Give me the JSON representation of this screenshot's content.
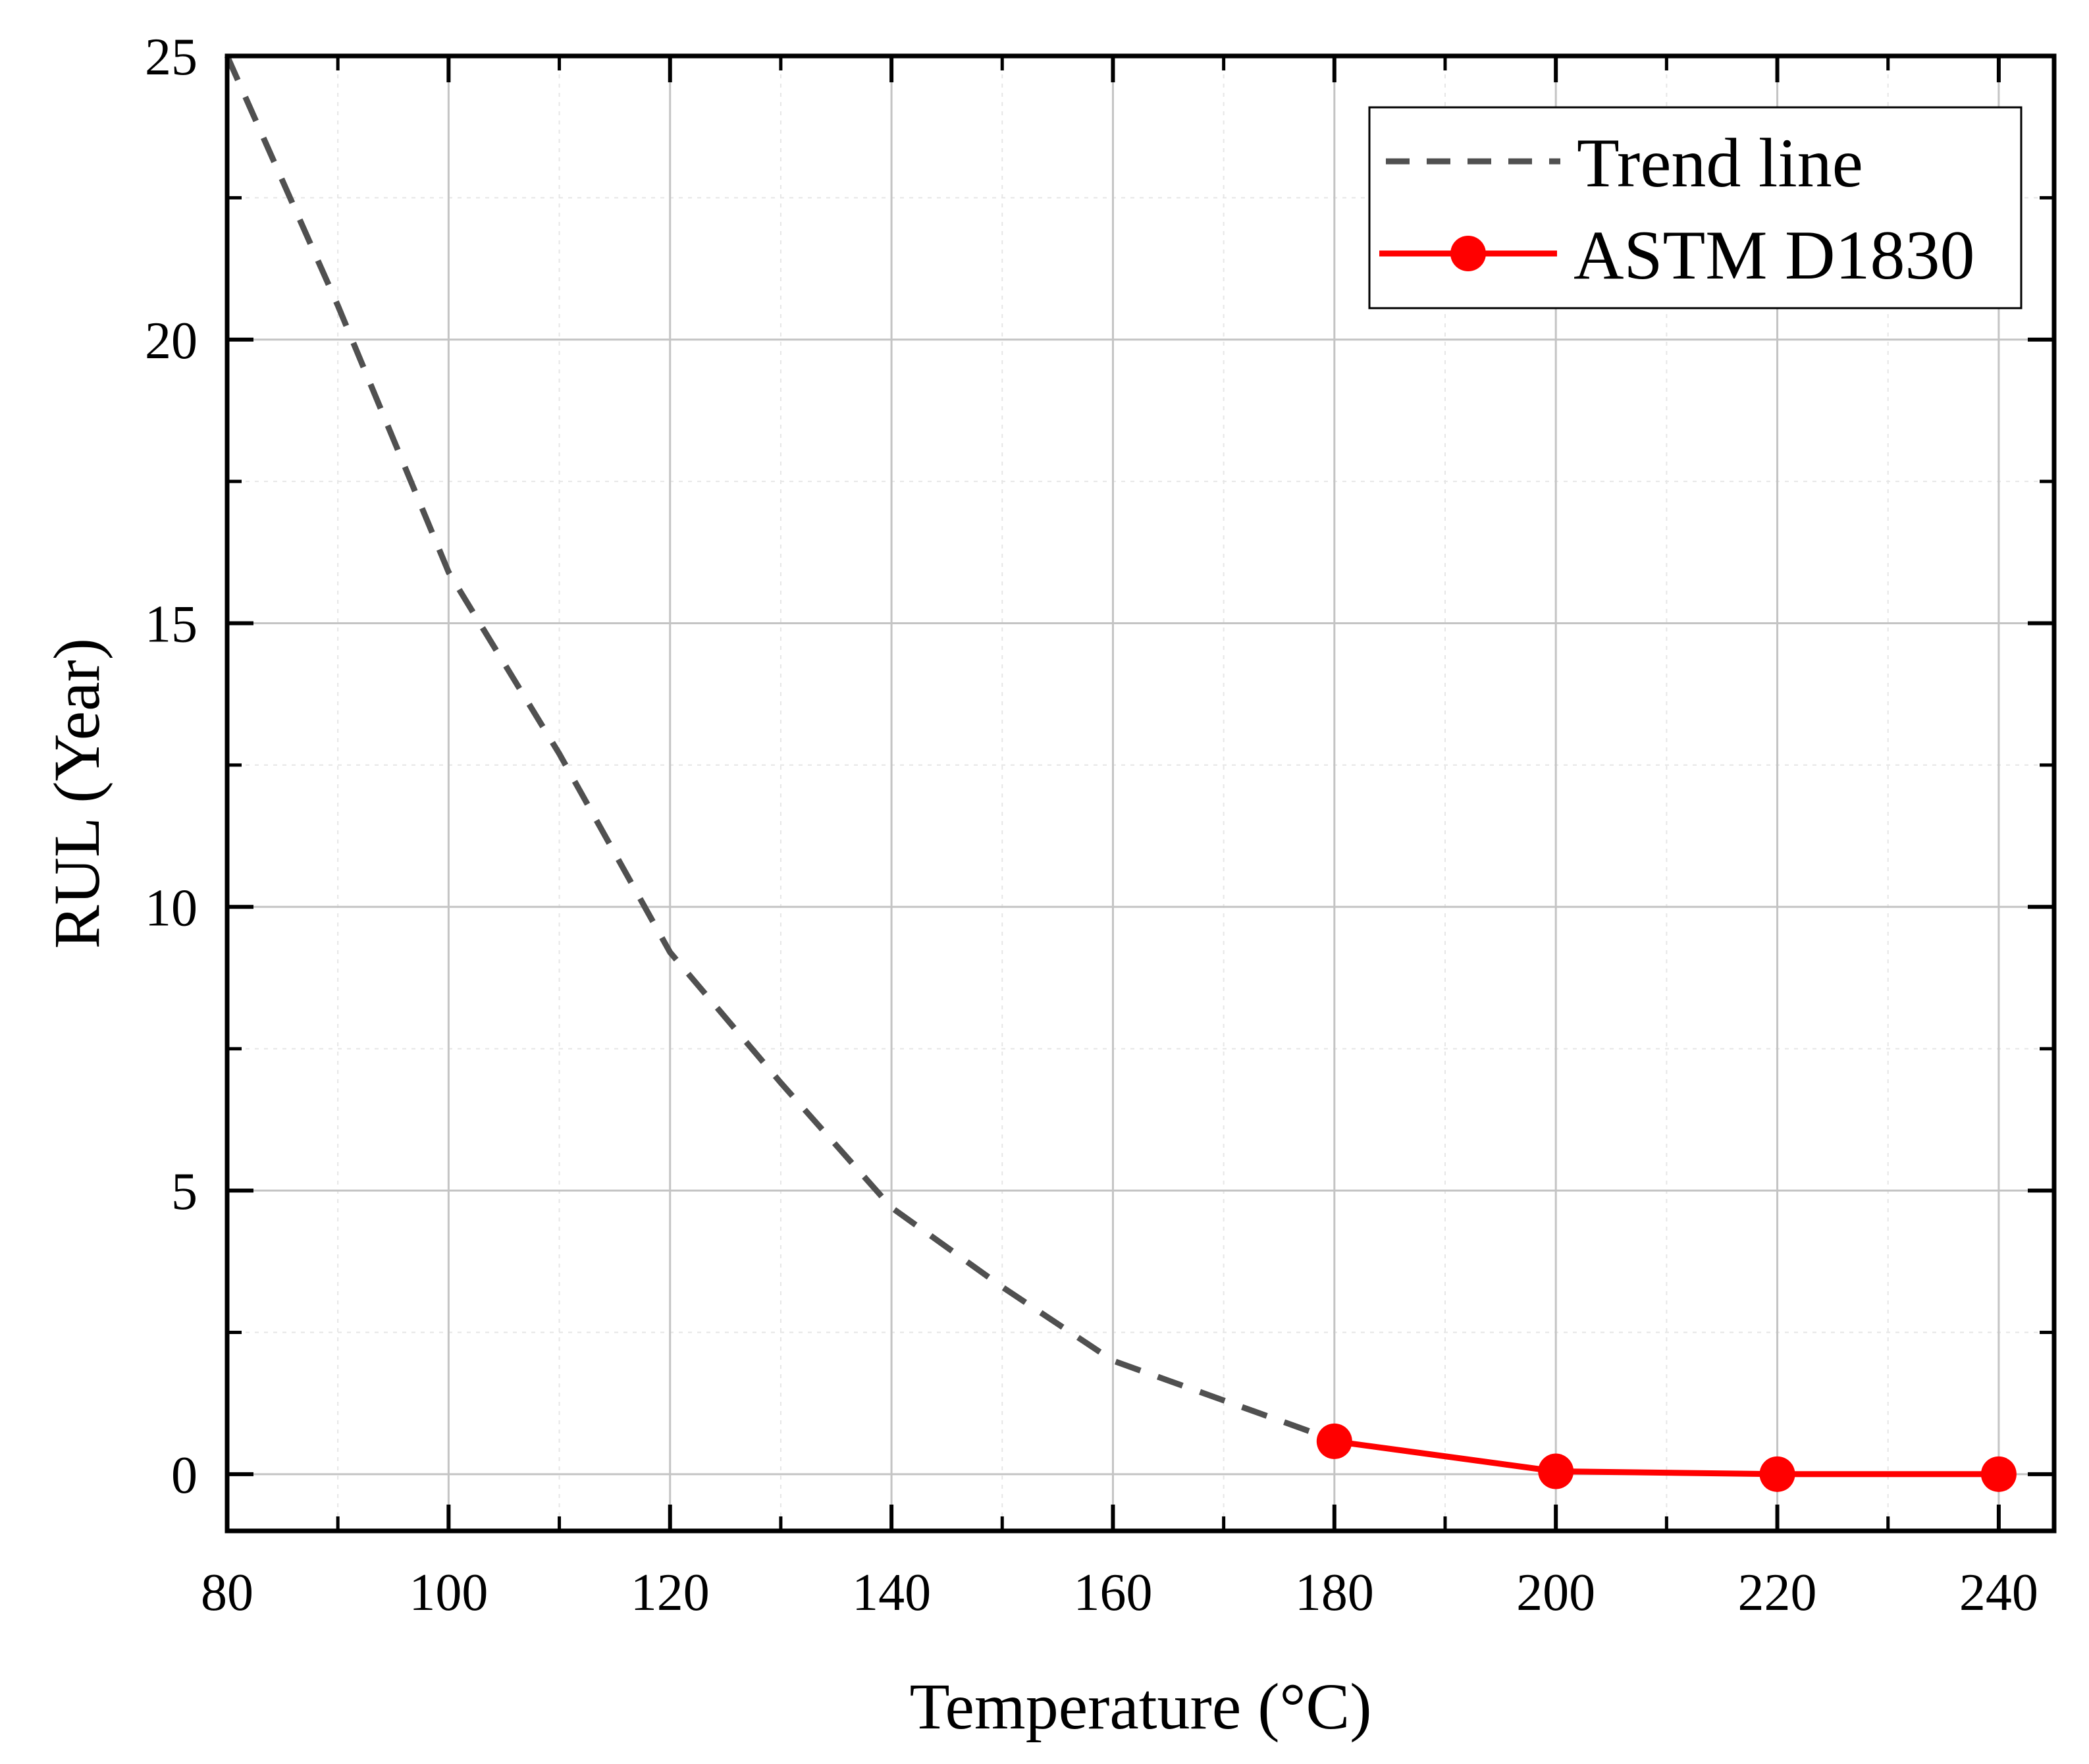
{
  "chart_data": {
    "type": "line",
    "title": "",
    "xlabel": "Temperature (°C)",
    "ylabel": "RUL (Year)",
    "xlim": [
      80,
      245
    ],
    "ylim": [
      -1,
      25
    ],
    "x_ticks": [
      80,
      100,
      120,
      140,
      160,
      180,
      200,
      220,
      240
    ],
    "y_ticks": [
      0,
      5,
      10,
      15,
      20,
      25
    ],
    "x_tick_labels": [
      "80",
      "100",
      "120",
      "140",
      "160",
      "180",
      "200",
      "220",
      "240"
    ],
    "y_tick_labels": [
      "0",
      "5",
      "10",
      "15",
      "20",
      "25"
    ],
    "x_minor_step": 10,
    "y_minor_step": 2.5,
    "grid": true,
    "legend_position": "top-right",
    "series": [
      {
        "name": "Trend line",
        "style": "dashed",
        "color": "#505050",
        "x": [
          80,
          90,
          100,
          110,
          120,
          130,
          140,
          150,
          160,
          170,
          180
        ],
        "y": [
          25.0,
          20.6,
          15.9,
          12.7,
          9.2,
          6.9,
          4.7,
          3.3,
          2.0,
          1.3,
          0.6
        ]
      },
      {
        "name": "ASTM D1830",
        "style": "solid-markers",
        "color": "#ff0000",
        "x": [
          180,
          200,
          220,
          240
        ],
        "y": [
          0.58,
          0.05,
          0.0,
          0.0
        ]
      }
    ]
  }
}
